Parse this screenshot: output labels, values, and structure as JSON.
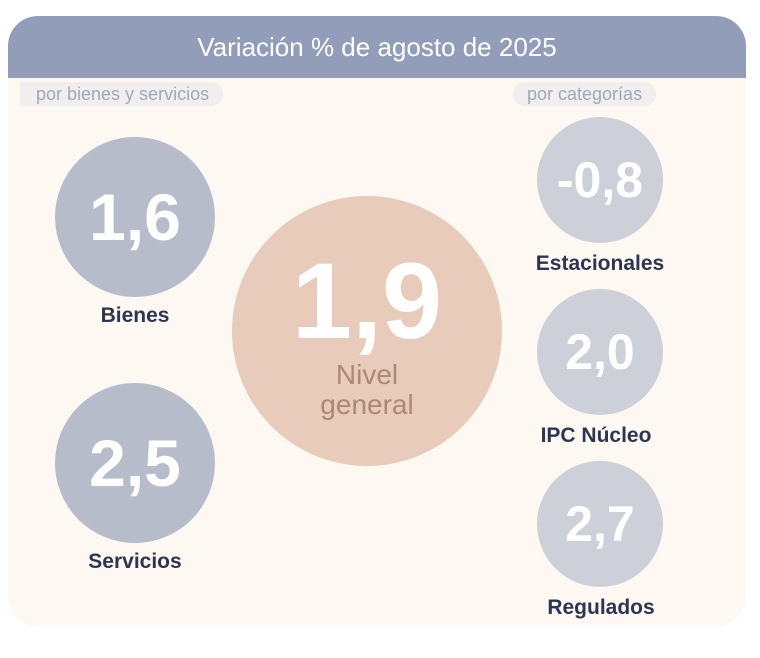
{
  "title": "Variación % de agosto de 2025",
  "left_tag": "por bienes y servicios",
  "right_tag": "por categorías",
  "general": {
    "value": "1,9",
    "label1": "Nivel",
    "label2": "general"
  },
  "bienes": {
    "value": "1,6",
    "label": "Bienes"
  },
  "servicios": {
    "value": "2,5",
    "label": "Servicios"
  },
  "estacionales": {
    "value": "-0,8",
    "label": "Estacionales"
  },
  "nucleo": {
    "value": "2,0",
    "label": "IPC Núcleo"
  },
  "regulados": {
    "value": "2,7",
    "label": "Regulados"
  },
  "colors": {
    "header": "#919db9",
    "general": "#e8cbbb",
    "goods": "#b7bccb",
    "categories": "#cdd0d8"
  }
}
